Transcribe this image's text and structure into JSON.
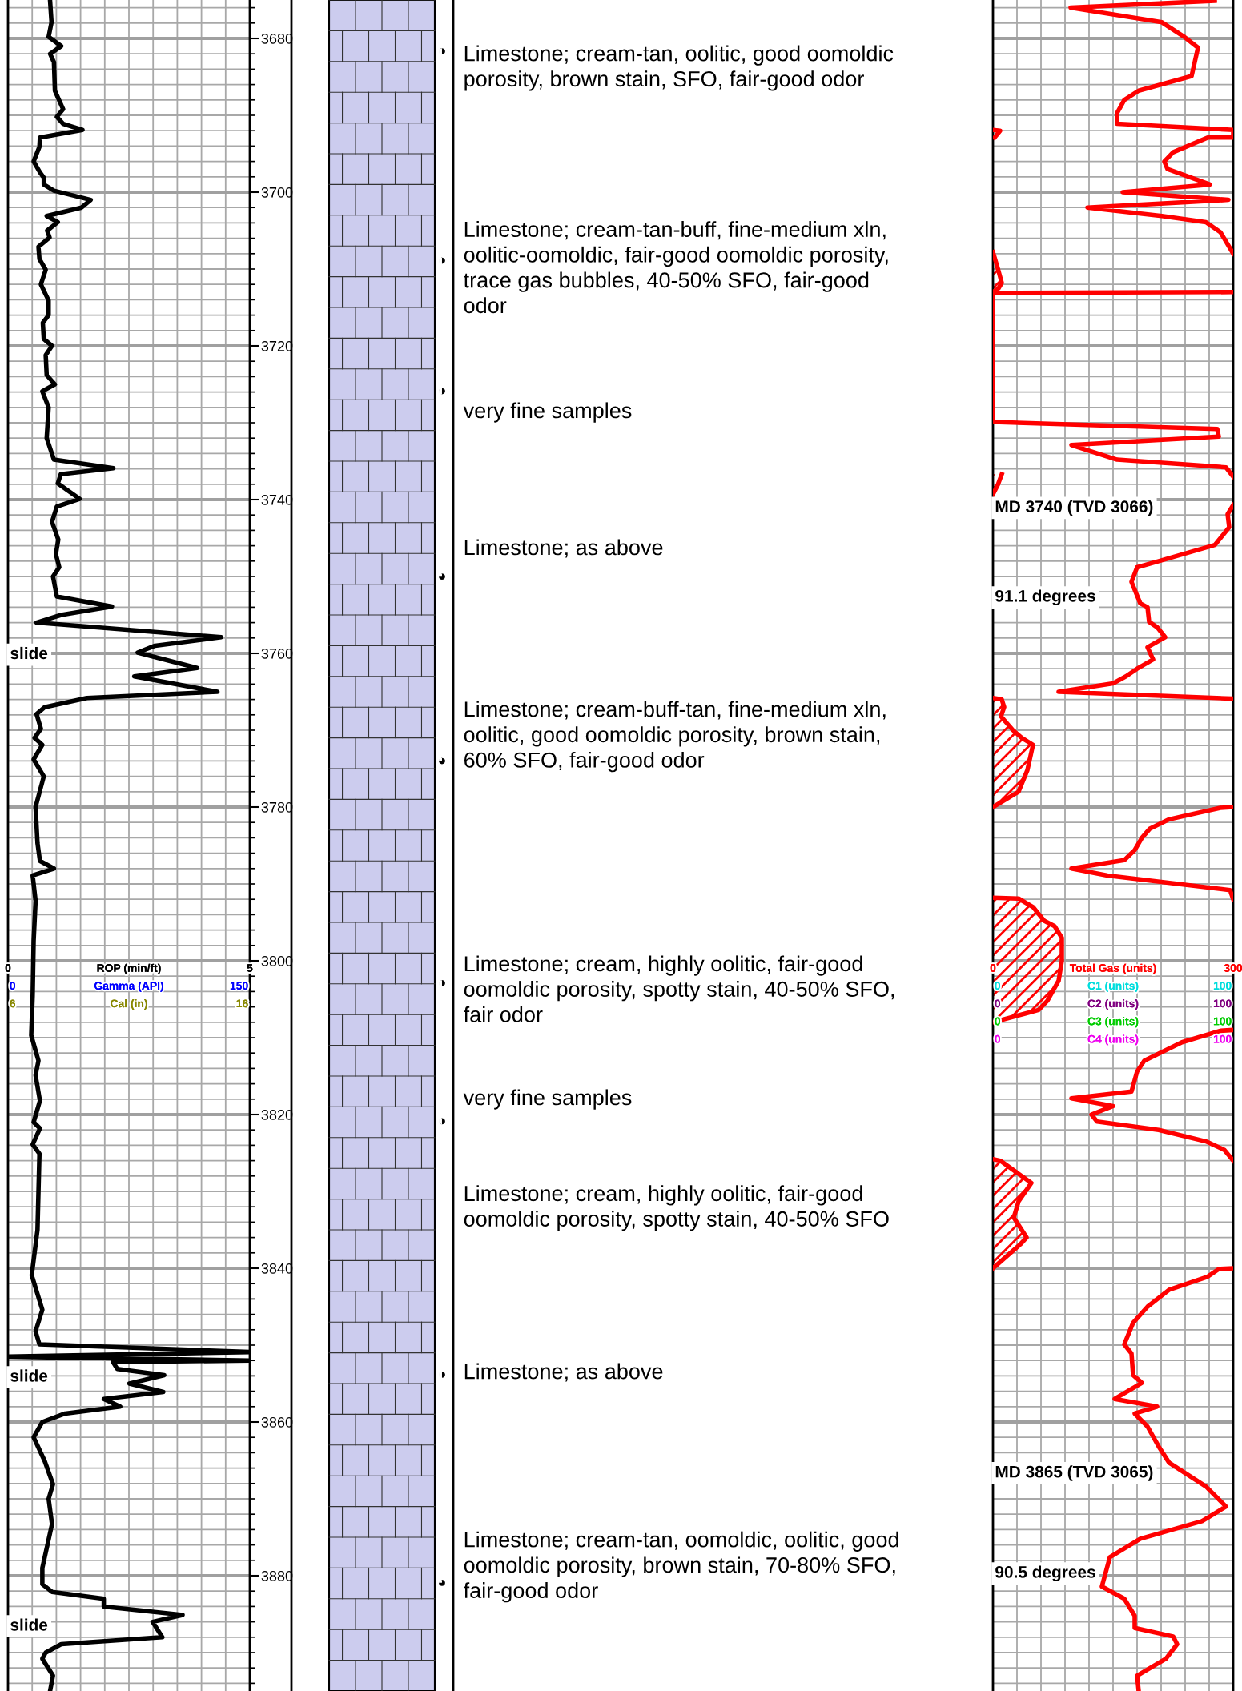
{
  "chart_data": [
    {
      "type": "line",
      "orientation": "horizontal",
      "xlabel": "ROP (min/ft)",
      "xlim": [
        0,
        5
      ],
      "xticks": [
        0,
        5
      ],
      "ylim": [
        3895,
        3675
      ],
      "yticks": [
        3680,
        3700,
        3720,
        3740,
        3760,
        3780,
        3800,
        3820,
        3840,
        3860,
        3880
      ],
      "grid": true,
      "series": [
        {
          "color": "#000000",
          "x": [
            3675.1,
            3677.9,
            3679.8,
            3681,
            3682,
            3683.1,
            3686.8,
            3689.2,
            3690.2,
            3691.1,
            3691.9,
            3692.9,
            3694.1,
            3696,
            3697.4,
            3698.1,
            3699,
            3699.8,
            3701,
            3702,
            3703.1,
            3703.9,
            3705,
            3705.9,
            3707.1,
            3708.7,
            3710.1,
            3712,
            3714.1,
            3716,
            3717,
            3719.1,
            3720,
            3721.2,
            3723.8,
            3725,
            3725.9,
            3728,
            3732,
            3734.8,
            3735.9,
            3736.7,
            3737.9,
            3739.9,
            3740.9,
            3742.9,
            3745.2,
            3747.1,
            3748.8,
            3750,
            3752.6,
            3753.9,
            3755,
            3756,
            3757.9,
            3759,
            3759.9,
            3761.9,
            3763,
            3765,
            3765.8,
            3767,
            3767.9,
            3769.8,
            3771,
            3771.9,
            3773.8,
            3776,
            3780,
            3784.7,
            3787,
            3788,
            3788.9,
            3792.2,
            3797.4,
            3804.5,
            3809.7,
            3813,
            3814.9,
            3818.2,
            3821,
            3821.8,
            3823.9,
            3825.1,
            3835,
            3840.9,
            3845.4,
            3848.2,
            3849.9,
            3850.9,
            3851.5,
            3852,
            3852.2,
            3853.1,
            3853.9,
            3855,
            3856.1,
            3857,
            3858,
            3858.9,
            3860,
            3862,
            3865.1,
            3868.1,
            3870,
            3873.3,
            3879,
            3881.1,
            3882.1,
            3883,
            3884,
            3885.1,
            3886,
            3888,
            3888.9,
            3890,
            3890.8,
            3893,
            3895
          ],
          "values": [
            0.87,
            0.9,
            0.84,
            1.1,
            0.87,
            0.95,
            0.97,
            1.14,
            1.01,
            1.14,
            1.54,
            0.66,
            0.65,
            0.53,
            0.66,
            0.74,
            0.74,
            0.95,
            1.71,
            1.52,
            0.8,
            1.03,
            0.81,
            0.86,
            0.63,
            0.65,
            0.78,
            0.68,
            0.84,
            0.84,
            0.72,
            0.74,
            0.91,
            0.78,
            0.8,
            0.97,
            0.71,
            0.84,
            0.8,
            0.95,
            2.18,
            1.09,
            1.03,
            1.48,
            1.01,
            0.91,
            1.04,
            0.99,
            1.06,
            0.93,
            1.01,
            2.15,
            1.1,
            0.59,
            4.41,
            3.04,
            2.68,
            3.91,
            2.61,
            4.33,
            1.63,
            0.76,
            0.59,
            0.68,
            0.55,
            0.71,
            0.53,
            0.74,
            0.57,
            0.61,
            0.66,
            0.95,
            0.51,
            0.57,
            0.53,
            0.51,
            0.48,
            0.63,
            0.57,
            0.66,
            0.53,
            0.66,
            0.51,
            0.65,
            0.61,
            0.49,
            0.71,
            0.57,
            0.65,
            5.0,
            0,
            5.0,
            2.17,
            2.26,
            3.23,
            2.51,
            3.21,
            1.98,
            2.32,
            1.18,
            0.71,
            0.53,
            0.76,
            0.93,
            0.84,
            0.91,
            0.71,
            0.71,
            0.91,
            1.98,
            1.98,
            3.61,
            2.99,
            3.19,
            1.1,
            0.78,
            0.71,
            0.93,
            0.87
          ]
        }
      ],
      "annotations": [
        "0",
        "Gamma (API)",
        "150",
        "6",
        "Cal (in)",
        "16",
        "slide",
        "slide",
        "slide"
      ]
    },
    {
      "type": "other",
      "annotations": [
        "Limestone; cream-tan, oolitic, good oomoldic\nporosity, brown stain, SFO, fair-good odor",
        "Limestone; cream-tan-buff, fine-medium xln,\noolitic-oomoldic, fair-good oomoldic porosity,\ntrace gas bubbles, 40-50% SFO, fair-good\nodor",
        "very fine samples",
        "Limestone; as above",
        "Limestone; cream-buff-tan, fine-medium xln,\noolitic, good oomoldic porosity, brown stain,\n60% SFO, fair-good odor",
        "Limestone; cream, highly oolitic, fair-good\noomoldic porosity, spotty stain, 40-50% SFO,\nfair odor",
        "very fine samples",
        "Limestone; cream, highly oolitic, fair-good\noomoldic porosity, spotty stain, 40-50% SFO",
        "Limestone; as above",
        "Limestone; cream-tan, oomoldic, oolitic, good\noomoldic porosity, brown stain, 70-80% SFO,\nfair-good odor",
        "◑",
        "◑",
        "◑",
        "◕",
        "◕",
        "◑",
        "◑",
        "◑",
        "◕"
      ]
    },
    {
      "type": "line",
      "orientation": "horizontal",
      "xlabel": "Total Gas (units)",
      "xlim": [
        0,
        300
      ],
      "xticks": [
        0,
        300
      ],
      "ylim": [
        3895,
        3675
      ],
      "yticks": [
        3680,
        3700,
        3720,
        3740,
        3760,
        3780,
        3800,
        3820,
        3840,
        3860,
        3880
      ],
      "tick_labels": "x",
      "grid": true,
      "series": [
        {
          "color": "#ff0000",
          "x": [
            3675.1,
            3676,
            3677.9,
            3679.8,
            3681.2,
            3684.9,
            3686.8,
            3688,
            3689.7,
            3691.1,
            3691.9,
            3692.9,
            3692.9,
            3694.8,
            3696,
            3697,
            3699,
            3700,
            3701,
            3702,
            3703.1,
            3703.9,
            3705.2,
            3708,
            3710,
            3713,
            3713.1,
            3729.9,
            3730.8,
            3731.8,
            3732.9,
            3734.8,
            3735.8,
            3737,
            3739,
            3740.7,
            3741.9,
            3743.6,
            3745.9,
            3748,
            3748.8,
            3750.7,
            3753.5,
            3754,
            3755.9,
            3756.6,
            3757.9,
            3759.2,
            3760.8,
            3762,
            3763,
            3763.9,
            3765,
            3765.9,
            3772,
            3780,
            3780.1,
            3781.6,
            3782.8,
            3784,
            3785.6,
            3786.9,
            3788,
            3788.9,
            3790.8,
            3792,
            3800,
            3809,
            3809.1,
            3810.6,
            3813,
            3814.4,
            3817,
            3817.9,
            3818.9,
            3820,
            3820.9,
            3822,
            3823.5,
            3824.6,
            3826,
            3833,
            3840,
            3840.1,
            3841.1,
            3842.8,
            3845,
            3847.1,
            3849.9,
            3851.1,
            3853.9,
            3854.9,
            3857,
            3858,
            3858.9,
            3860.6,
            3863.2,
            3865.3,
            3868.4,
            3871,
            3872.9,
            3875.2,
            3877.6,
            3881.4,
            3883,
            3885.2,
            3886.8,
            3887.9,
            3888.9,
            3890.8,
            3893,
            3895
          ],
          "values": [
            277,
            97,
            211,
            239,
            256,
            248,
            182,
            164,
            155,
            155,
            300,
            300,
            268,
            225,
            214,
            218,
            271,
            162,
            294,
            118,
            211,
            266,
            284,
            300,
            null,
            300,
            0,
            0,
            280,
            282,
            98,
            155,
            291,
            300,
            null,
            300,
            293,
            295,
            277,
            207,
            180,
            173,
            184,
            193,
            195,
            205,
            215,
            193,
            200,
            180,
            166,
            150,
            82,
            300,
            null,
            300,
            284,
            220,
            196,
            186,
            177,
            164,
            98,
            143,
            296,
            300,
            null,
            300,
            284,
            236,
            189,
            180,
            173,
            98,
            150,
            123,
            130,
            207,
            266,
            289,
            300,
            null,
            300,
            282,
            268,
            220,
            193,
            175,
            164,
            173,
            175,
            186,
            152,
            205,
            177,
            193,
            207,
            220,
            266,
            291,
            261,
            184,
            146,
            136,
            164,
            177,
            177,
            225,
            230,
            216,
            180,
            182
          ]
        },
        {
          "type": "area",
          "color": "#ff0000",
          "x": [
            3691.9,
            3692,
            3692.9,
            3700,
            3707.8,
            3709.9,
            3711.8,
            3712.5,
            3713,
            3725,
            3736.7,
            3738.1,
            3739.3,
            3750,
            3765.8,
            3766,
            3767,
            3768.2,
            3770,
            3771,
            3771.9,
            3775.2,
            3778,
            3780,
            3785,
            3791.8,
            3791.9,
            3793,
            3794.8,
            3795.5,
            3797,
            3800,
            3802.6,
            3805.2,
            3806.4,
            3806.9,
            3808,
            3815,
            3825.8,
            3826,
            3828.9,
            3831.3,
            3833.4,
            3836,
            3836.9,
            3840
          ],
          "values": [
            0,
            9,
            2,
            null,
            0,
            6,
            11,
            7,
            0,
            null,
            11,
            6,
            0,
            null,
            0,
            11,
            14,
            10,
            25,
            36,
            50,
            43,
            32,
            0,
            null,
            0,
            32,
            50,
            64,
            77,
            86,
            86,
            82,
            68,
            57,
            39,
            0,
            null,
            0,
            9,
            48,
            32,
            26,
            42,
            34,
            0
          ]
        }
      ],
      "annotations": [
        "0",
        "C1 (units)",
        "100",
        "0",
        "C2 (units)",
        "100",
        "0",
        "C3 (units)",
        "100",
        "0",
        "C4 (units)",
        "100",
        "MD 3740 (TVD 3066)",
        "91.1 degrees",
        "MD 3865 (TVD 3065)",
        "90.5 degrees"
      ]
    }
  ]
}
